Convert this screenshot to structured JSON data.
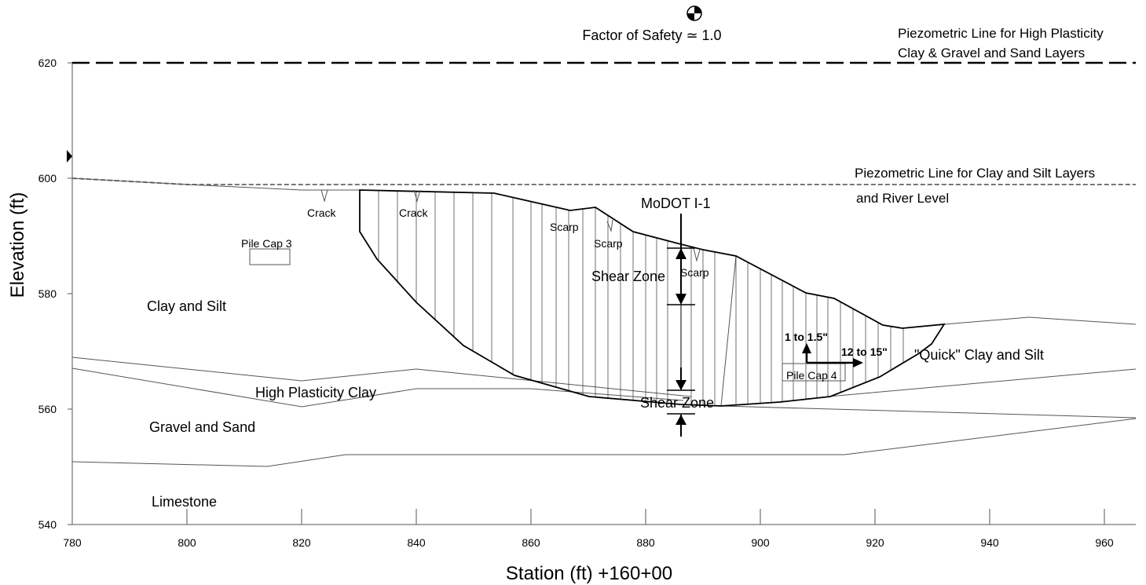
{
  "title": "Factor of Safety ≃ 1.0",
  "axes": {
    "xlabel": "Station (ft) +160+00",
    "ylabel": "Elevation (ft)",
    "xticks": [
      "780",
      "800",
      "820",
      "840",
      "860",
      "880",
      "900",
      "920",
      "940",
      "960"
    ],
    "yticks": [
      "540",
      "560",
      "580",
      "600",
      "620"
    ]
  },
  "piezometric": {
    "high_label_1": "Piezometric Line for High Plasticity",
    "high_label_2": "Clay & Gravel and Sand Layers",
    "clay_label_1": "Piezometric Line for Clay and Silt Layers",
    "clay_label_2": "and River Level"
  },
  "layers": {
    "clay_silt": "Clay and Silt",
    "high_plasticity": "High Plasticity Clay",
    "gravel_sand": "Gravel and Sand",
    "limestone": "Limestone",
    "quick_clay": "\"Quick\" Clay and Silt"
  },
  "features": {
    "crack_1": "Crack",
    "crack_2": "Crack",
    "scarp_1": "Scarp",
    "scarp_2": "Scarp",
    "scarp_3": "Scarp",
    "pile_cap_3": "Pile Cap 3",
    "pile_cap_4": "Pile Cap 4",
    "modot": "MoDOT I-1",
    "shear_zone_1": "Shear Zone",
    "shear_zone_2": "Shear Zone",
    "vert_move": "1 to 1.5\"",
    "horiz_move": "12 to 15\""
  },
  "colors": {
    "line": "#000000",
    "soft_line": "#555555",
    "background": "#ffffff"
  }
}
